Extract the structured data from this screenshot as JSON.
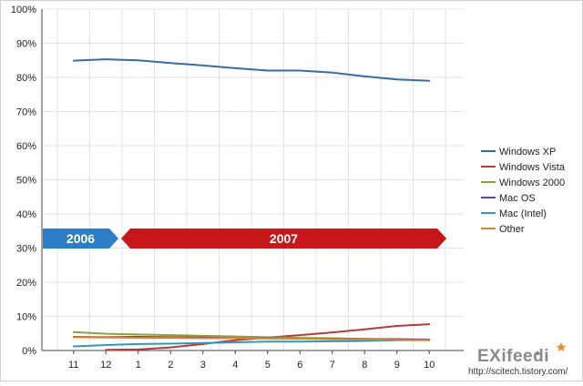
{
  "chart_data": {
    "type": "line",
    "categories": [
      "11",
      "12",
      "1",
      "2",
      "3",
      "4",
      "5",
      "6",
      "7",
      "8",
      "9",
      "10"
    ],
    "ylim": [
      0,
      100
    ],
    "y_ticks": [
      "0%",
      "10%",
      "20%",
      "30%",
      "40%",
      "50%",
      "60%",
      "70%",
      "80%",
      "90%",
      "100%"
    ],
    "grid": true,
    "legend_position": "right",
    "series": [
      {
        "name": "Windows XP",
        "color": "#3a6ba5",
        "values": [
          84.9,
          85.3,
          85.0,
          84.2,
          83.5,
          82.7,
          82.0,
          82.0,
          81.4,
          80.3,
          79.4,
          79.0
        ]
      },
      {
        "name": "Windows Vista",
        "color": "#b73a3a",
        "values": [
          null,
          0.2,
          0.3,
          0.9,
          1.9,
          3.0,
          3.8,
          4.5,
          5.3,
          6.2,
          7.2,
          7.7
        ]
      },
      {
        "name": "Windows 2000",
        "color": "#8aa33a",
        "values": [
          5.4,
          4.9,
          4.7,
          4.5,
          4.3,
          4.1,
          3.9,
          3.7,
          3.6,
          3.4,
          3.3,
          3.2
        ]
      },
      {
        "name": "Mac OS",
        "color": "#6a3f92",
        "values": [
          4.0,
          3.9,
          4.0,
          3.9,
          3.8,
          3.6,
          3.6,
          3.5,
          3.4,
          3.3,
          3.3,
          3.2
        ]
      },
      {
        "name": "Mac (Intel)",
        "color": "#2f98c2",
        "values": [
          1.2,
          1.6,
          1.9,
          2.0,
          2.2,
          2.4,
          2.6,
          2.6,
          2.7,
          2.8,
          3.0,
          3.1
        ]
      },
      {
        "name": "Other",
        "color": "#e0822e",
        "values": [
          3.9,
          3.8,
          3.7,
          3.7,
          3.6,
          3.6,
          3.5,
          3.5,
          3.3,
          3.2,
          3.1,
          3.0
        ]
      }
    ],
    "year_bands": [
      {
        "label": "2006",
        "from": "11",
        "to": "12",
        "color": "#2b7dc5"
      },
      {
        "label": "2007",
        "from": "1",
        "to": "10",
        "color": "#c8171b"
      }
    ]
  },
  "watermark": {
    "brand": "EXifeedi",
    "url": "http://scitech.tistory.com/"
  }
}
